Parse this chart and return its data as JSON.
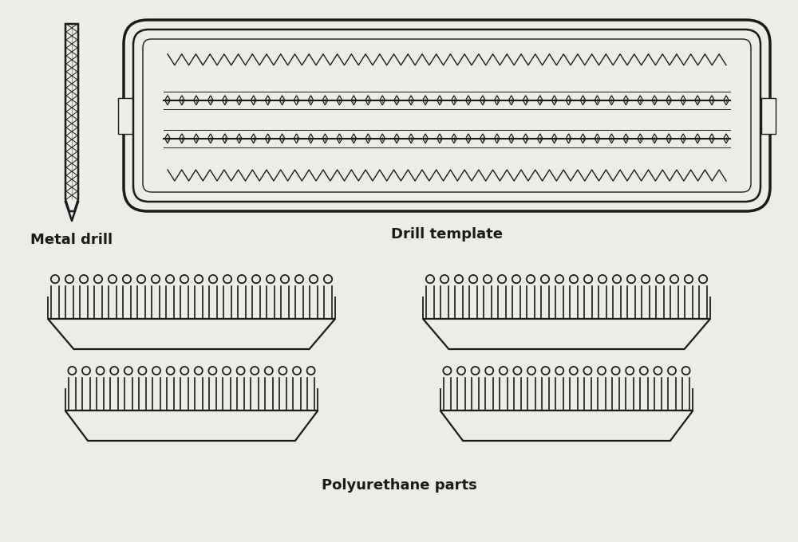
{
  "bg_color": "#eeece8",
  "line_color": "#1a1a1a",
  "title_metal_drill": "Metal drill",
  "title_drill_template": "Drill template",
  "title_polyurethane": "Polyurethane parts",
  "label_fontsize": 13,
  "label_fontweight": "bold"
}
